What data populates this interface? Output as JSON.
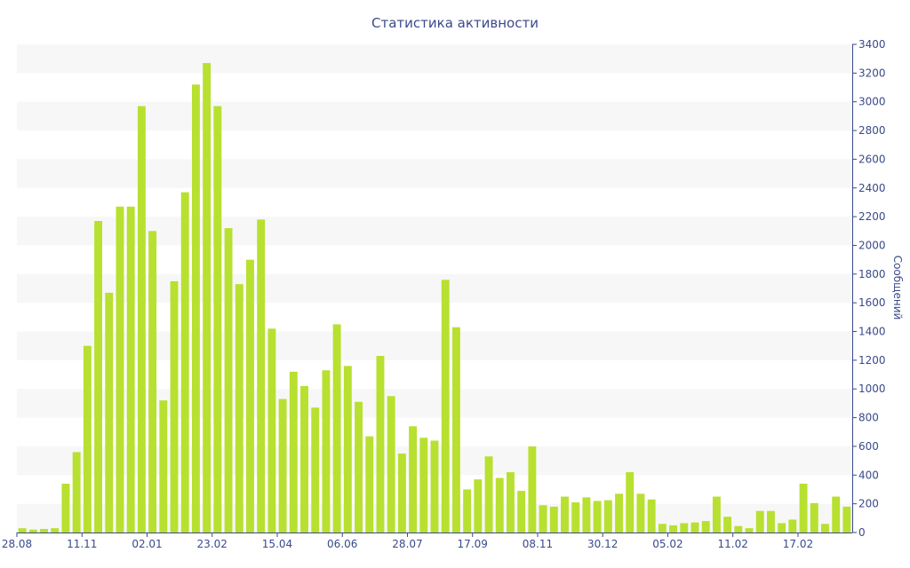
{
  "chart_data": {
    "type": "bar",
    "title": "Статистика активности",
    "xlabel": "",
    "ylabel": "Сообщений",
    "ylim": [
      0,
      3400
    ],
    "y_ticks": [
      0,
      200,
      400,
      600,
      800,
      1000,
      1200,
      1400,
      1600,
      1800,
      2000,
      2200,
      2400,
      2600,
      2800,
      3000,
      3200,
      3400
    ],
    "y_axis_side": "right",
    "grid": "alternating horizontal bands",
    "x_tick_labels": [
      {
        "label": "28.08",
        "index": 0
      },
      {
        "label": "11.11",
        "index": 6
      },
      {
        "label": "02.01",
        "index": 12
      },
      {
        "label": "23.02",
        "index": 18
      },
      {
        "label": "15.04",
        "index": 24
      },
      {
        "label": "06.06",
        "index": 30
      },
      {
        "label": "28.07",
        "index": 36
      },
      {
        "label": "17.09",
        "index": 42
      },
      {
        "label": "08.11",
        "index": 48
      },
      {
        "label": "30.12",
        "index": 54
      },
      {
        "label": "05.02",
        "index": 60
      },
      {
        "label": "11.02",
        "index": 66
      },
      {
        "label": "17.02",
        "index": 72
      }
    ],
    "values": [
      30,
      20,
      25,
      30,
      340,
      560,
      1300,
      2170,
      1670,
      2270,
      2270,
      2970,
      2100,
      920,
      1750,
      2370,
      3120,
      3270,
      2970,
      2120,
      1730,
      1900,
      2180,
      1420,
      930,
      1120,
      1020,
      870,
      1130,
      1450,
      1160,
      910,
      670,
      1230,
      950,
      550,
      740,
      660,
      640,
      1760,
      1430,
      300,
      370,
      530,
      380,
      420,
      290,
      600,
      190,
      180,
      250,
      210,
      245,
      220,
      225,
      270,
      420,
      270,
      230,
      60,
      50,
      65,
      70,
      80,
      250,
      110,
      45,
      30,
      150,
      150,
      65,
      90,
      340,
      205,
      60,
      250,
      180
    ],
    "colors": {
      "bar": "#b8e030",
      "band": "#f7f7f7",
      "axis": "#3a4a8a",
      "text": "#3a4a8a"
    }
  }
}
